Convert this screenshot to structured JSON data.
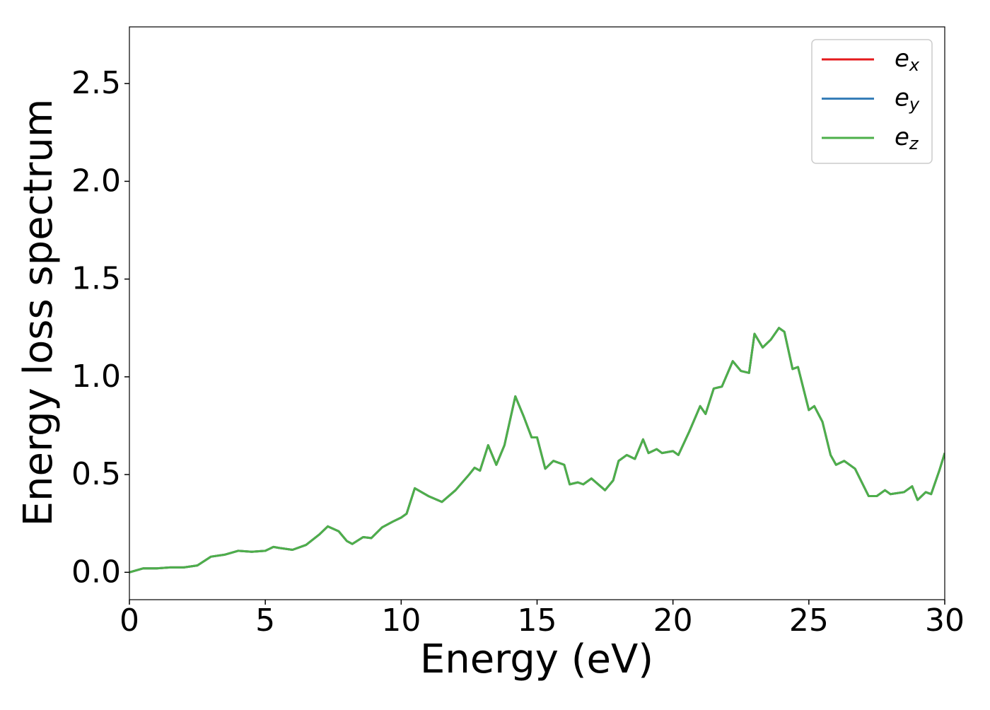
{
  "chart_data": {
    "type": "line",
    "xlabel": "Energy (eV)",
    "ylabel": "Energy loss spectrum",
    "x": [
      0,
      0.5,
      1,
      1.5,
      2,
      2.5,
      3,
      3.5,
      4,
      4.5,
      5,
      5.3,
      5.5,
      6,
      6.5,
      7,
      7.3,
      7.7,
      8,
      8.2,
      8.6,
      8.9,
      9.3,
      9.7,
      10,
      10.2,
      10.5,
      11,
      11.5,
      12,
      12.5,
      12.7,
      12.9,
      13.2,
      13.5,
      13.8,
      14.2,
      14.5,
      14.8,
      15,
      15.3,
      15.6,
      16,
      16.2,
      16.5,
      16.7,
      17,
      17.5,
      17.8,
      18,
      18.3,
      18.6,
      18.9,
      19.1,
      19.4,
      19.6,
      20,
      20.2,
      20.6,
      21,
      21.2,
      21.5,
      21.8,
      22.2,
      22.5,
      22.8,
      23,
      23.3,
      23.6,
      23.9,
      24.1,
      24.4,
      24.6,
      25,
      25.2,
      25.5,
      25.8,
      26,
      26.3,
      26.7,
      27.2,
      27.5,
      27.8,
      28,
      28.5,
      28.8,
      29,
      29.3,
      29.5,
      29.8,
      30
    ],
    "series": [
      {
        "name": "ex",
        "color": "#e41a1c",
        "values": [
          0,
          0.02,
          0.02,
          0.025,
          0.025,
          0.035,
          0.08,
          0.09,
          0.11,
          0.105,
          0.11,
          0.13,
          0.125,
          0.115,
          0.14,
          0.195,
          0.235,
          0.21,
          0.16,
          0.145,
          0.18,
          0.175,
          0.23,
          0.26,
          0.28,
          0.3,
          0.43,
          0.39,
          0.36,
          0.42,
          0.5,
          0.535,
          0.52,
          0.65,
          0.55,
          0.65,
          0.9,
          0.8,
          0.69,
          0.69,
          0.53,
          0.57,
          0.55,
          0.45,
          0.46,
          0.45,
          0.48,
          0.42,
          0.47,
          0.57,
          0.6,
          0.58,
          0.68,
          0.61,
          0.63,
          0.61,
          0.62,
          0.6,
          0.72,
          0.85,
          0.81,
          0.94,
          0.95,
          1.08,
          1.03,
          1.02,
          1.22,
          1.15,
          1.19,
          1.25,
          1.23,
          1.04,
          1.05,
          0.83,
          0.85,
          0.77,
          0.6,
          0.55,
          0.57,
          0.53,
          0.39,
          0.39,
          0.42,
          0.4,
          0.41,
          0.44,
          0.37,
          0.41,
          0.4,
          0.52,
          0.61
        ]
      },
      {
        "name": "ey",
        "color": "#377eb8",
        "values": [
          0,
          0.02,
          0.02,
          0.025,
          0.025,
          0.035,
          0.08,
          0.09,
          0.11,
          0.105,
          0.11,
          0.13,
          0.125,
          0.115,
          0.14,
          0.195,
          0.235,
          0.21,
          0.16,
          0.145,
          0.18,
          0.175,
          0.23,
          0.26,
          0.28,
          0.3,
          0.43,
          0.39,
          0.36,
          0.42,
          0.5,
          0.535,
          0.52,
          0.65,
          0.55,
          0.65,
          0.9,
          0.8,
          0.69,
          0.69,
          0.53,
          0.57,
          0.55,
          0.45,
          0.46,
          0.45,
          0.48,
          0.42,
          0.47,
          0.57,
          0.6,
          0.58,
          0.68,
          0.61,
          0.63,
          0.61,
          0.62,
          0.6,
          0.72,
          0.85,
          0.81,
          0.94,
          0.95,
          1.08,
          1.03,
          1.02,
          1.22,
          1.15,
          1.19,
          1.25,
          1.23,
          1.04,
          1.05,
          0.83,
          0.85,
          0.77,
          0.6,
          0.55,
          0.57,
          0.53,
          0.39,
          0.39,
          0.42,
          0.4,
          0.41,
          0.44,
          0.37,
          0.41,
          0.4,
          0.52,
          0.61
        ]
      },
      {
        "name": "ez",
        "color": "#4daf4a",
        "values": [
          0,
          0.02,
          0.02,
          0.025,
          0.025,
          0.035,
          0.08,
          0.09,
          0.11,
          0.105,
          0.11,
          0.13,
          0.125,
          0.115,
          0.14,
          0.195,
          0.235,
          0.21,
          0.16,
          0.145,
          0.18,
          0.175,
          0.23,
          0.26,
          0.28,
          0.3,
          0.43,
          0.39,
          0.36,
          0.42,
          0.5,
          0.535,
          0.52,
          0.65,
          0.55,
          0.65,
          0.9,
          0.8,
          0.69,
          0.69,
          0.53,
          0.57,
          0.55,
          0.45,
          0.46,
          0.45,
          0.48,
          0.42,
          0.47,
          0.57,
          0.6,
          0.58,
          0.68,
          0.61,
          0.63,
          0.61,
          0.62,
          0.6,
          0.72,
          0.85,
          0.81,
          0.94,
          0.95,
          1.08,
          1.03,
          1.02,
          1.22,
          1.15,
          1.19,
          1.25,
          1.23,
          1.04,
          1.05,
          0.83,
          0.85,
          0.77,
          0.6,
          0.55,
          0.57,
          0.53,
          0.39,
          0.39,
          0.42,
          0.4,
          0.41,
          0.44,
          0.37,
          0.41,
          0.4,
          0.52,
          0.61
        ]
      }
    ],
    "xlim": [
      0,
      30
    ],
    "xticks": [
      0,
      5,
      10,
      15,
      20,
      25,
      30
    ],
    "ylim": [
      -0.14,
      2.79
    ],
    "yticks": [
      {
        "value": 0,
        "label": "0.0"
      },
      0.5,
      {
        "value": 1,
        "label": "1.0"
      },
      1.5,
      {
        "value": 2,
        "label": "2.0"
      },
      2.5
    ],
    "grid": false,
    "legend": "upper right"
  }
}
